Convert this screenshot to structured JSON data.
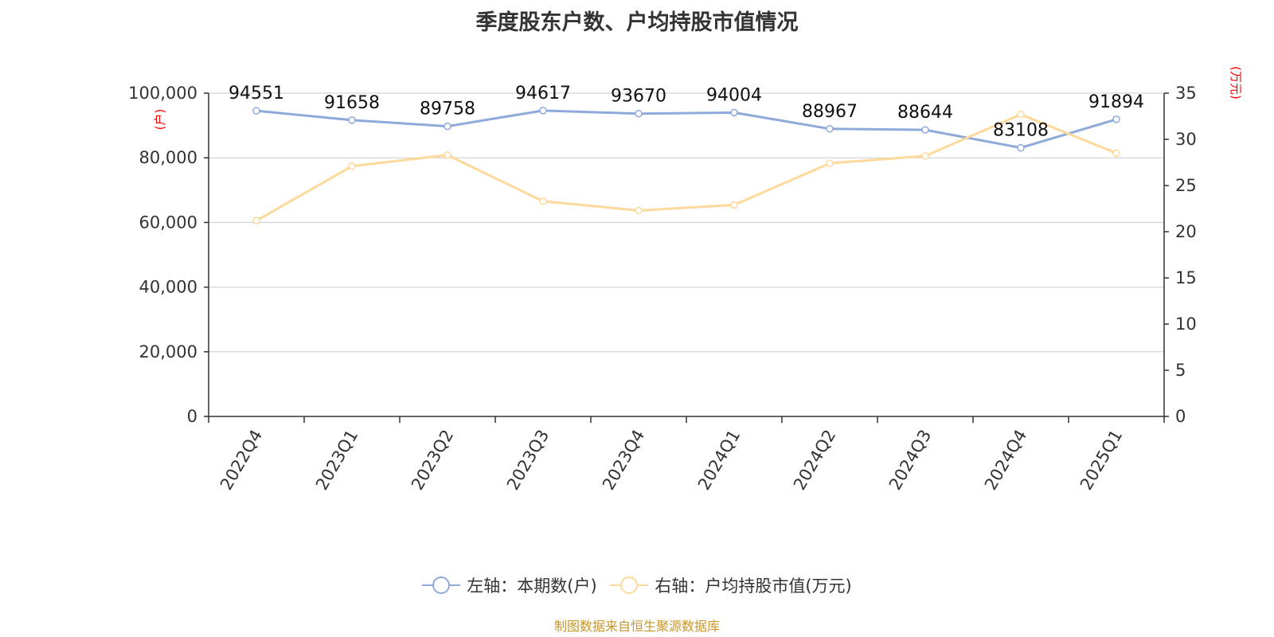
{
  "title": "季度股东户数、户均持股市值情况",
  "source_note": "制图数据来自恒生聚源数据库",
  "colors": {
    "holders": "#8eaadb",
    "value": "#fdd99b",
    "axis_unit": "#ff0000",
    "source": "#c8962a",
    "grid": "#cccccc",
    "axis": "#333333"
  },
  "chart_data": {
    "type": "line",
    "title": "季度股东户数、户均持股市值情况",
    "categories": [
      "2022Q4",
      "2023Q1",
      "2023Q2",
      "2023Q3",
      "2023Q4",
      "2024Q1",
      "2024Q2",
      "2024Q3",
      "2024Q4",
      "2025Q1"
    ],
    "left_axis": {
      "unit_label": "(户)",
      "ylim": [
        0,
        100000
      ],
      "ticks": [
        0,
        20000,
        40000,
        60000,
        80000,
        100000
      ],
      "tick_labels": [
        "0",
        "20,000",
        "40,000",
        "60,000",
        "80,000",
        "100,000"
      ]
    },
    "right_axis": {
      "unit_label": "(万元)",
      "ylim": [
        0,
        35
      ],
      "ticks": [
        0,
        5,
        10,
        15,
        20,
        25,
        30,
        35
      ],
      "tick_labels": [
        "0",
        "5",
        "10",
        "15",
        "20",
        "25",
        "30",
        "35"
      ]
    },
    "series": [
      {
        "name": "左轴：本期数(户)",
        "axis": "left",
        "color": "#8eaadb",
        "values": [
          94551,
          91658,
          89758,
          94617,
          93670,
          94004,
          88967,
          88644,
          83108,
          91894
        ],
        "data_labels": [
          "94551",
          "91658",
          "89758",
          "94617",
          "93670",
          "94004",
          "88967",
          "88644",
          "83108",
          "91894"
        ]
      },
      {
        "name": "右轴：户均持股市值(万元)",
        "axis": "right",
        "color": "#fdd99b",
        "values": [
          21.2,
          27.1,
          28.3,
          23.3,
          22.3,
          22.9,
          27.4,
          28.2,
          32.7,
          28.5
        ]
      }
    ],
    "grid": true,
    "legend_position": "bottom"
  }
}
